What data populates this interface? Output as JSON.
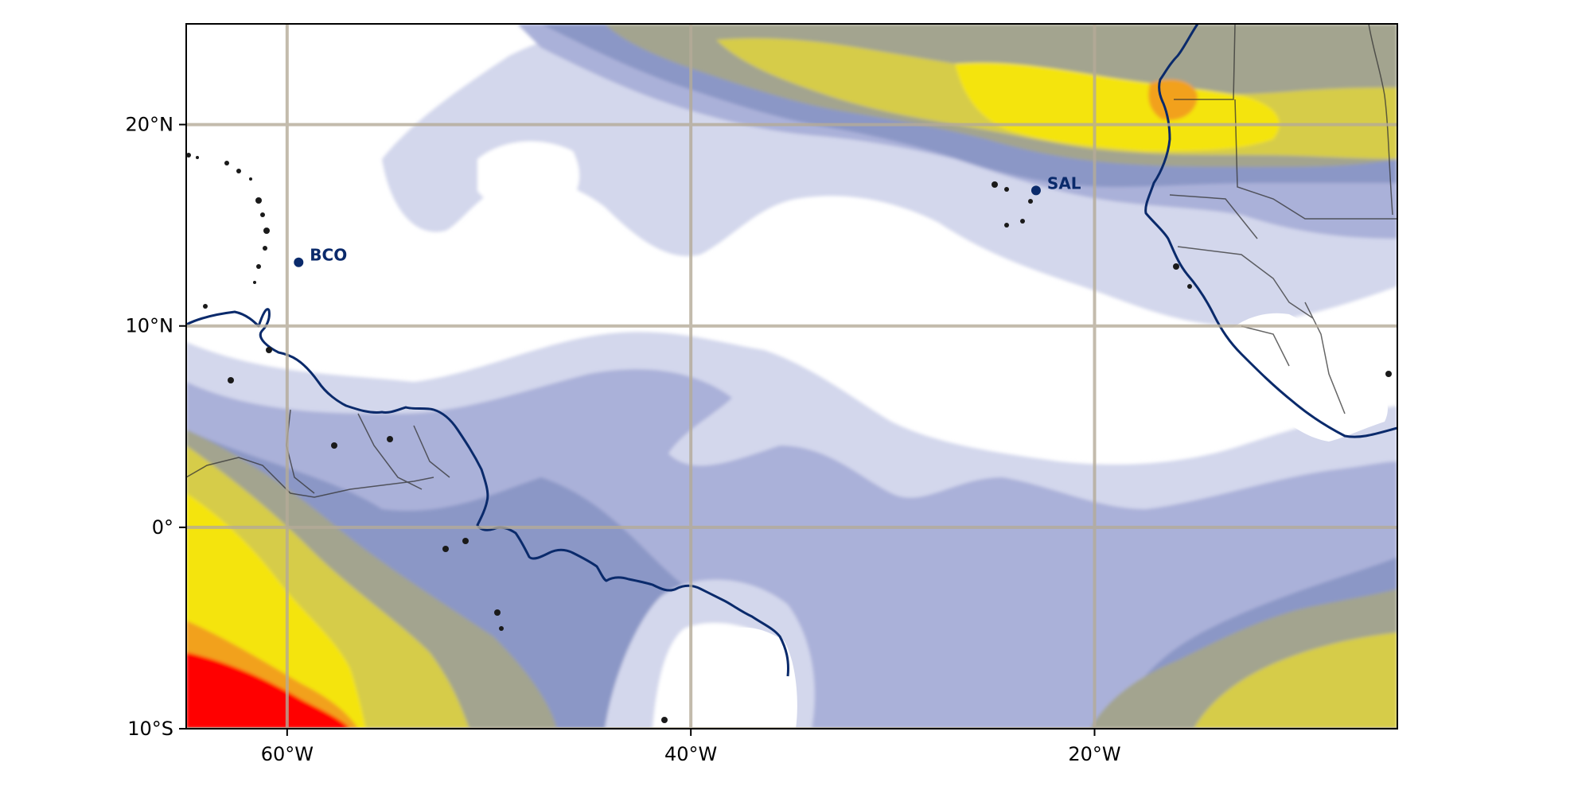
{
  "map": {
    "extent": {
      "lon_min": -65,
      "lon_max": -5,
      "lat_min": -10,
      "lat_max": 25
    },
    "gridlines": true,
    "colors": {
      "ocean_clear": "#ffffff",
      "level_1": "#d3d7ec",
      "level_2": "#aab1d9",
      "level_3": "#8b97c6",
      "level_4": "#a3a48f",
      "level_5": "#d6cc48",
      "level_6": "#f4e40c",
      "level_7": "#f2a11c",
      "level_8": "#ff0000",
      "coastline": "#0a2a6b",
      "land": "#ffffff",
      "border": "#333333",
      "station": "#0a2a6b",
      "grid": "#b5ab98"
    },
    "x_ticks": [
      {
        "lon": -60,
        "label": "60°W"
      },
      {
        "lon": -40,
        "label": "40°W"
      },
      {
        "lon": -20,
        "label": "20°W"
      }
    ],
    "y_ticks": [
      {
        "lat": 20,
        "label": "20°N"
      },
      {
        "lat": 10,
        "label": "10°N"
      },
      {
        "lat": 0,
        "label": "0°"
      },
      {
        "lat": -10,
        "label": "10°S"
      }
    ],
    "stations": [
      {
        "id": "bco",
        "label": "BCO",
        "lon": -59.43,
        "lat": 13.16
      },
      {
        "id": "sal",
        "label": "SAL",
        "lon": -22.9,
        "lat": 16.73
      }
    ]
  }
}
